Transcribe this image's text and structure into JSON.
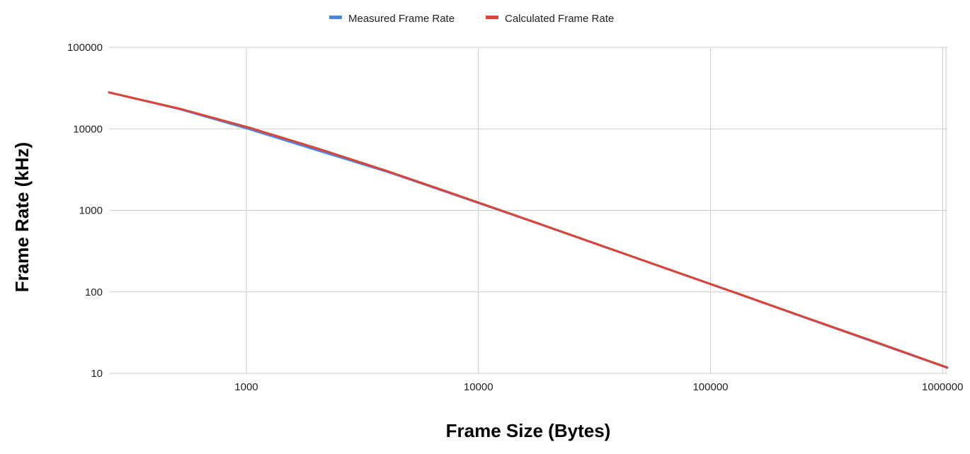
{
  "chart_data": {
    "type": "line",
    "title": "",
    "xlabel": "Frame Size (Bytes)",
    "ylabel": "Frame Rate (kHz)",
    "x_scale": "log",
    "y_scale": "log",
    "xlim": [
      256,
      1048576
    ],
    "ylim": [
      10,
      100000
    ],
    "x_ticks": [
      1000,
      10000,
      100000,
      1000000
    ],
    "x_tick_labels": [
      "1000",
      "10000",
      "100000",
      "1000000"
    ],
    "y_ticks": [
      10,
      100,
      1000,
      10000,
      100000
    ],
    "y_tick_labels": [
      "10",
      "100",
      "1000",
      "10000",
      "100000"
    ],
    "grid": true,
    "legend_position": "top",
    "series": [
      {
        "name": "Measured Frame Rate",
        "color": "#4a86e8",
        "x": [
          256,
          512,
          1024,
          2048,
          4096,
          8192,
          16384,
          32768,
          65536,
          131072,
          262144,
          524288,
          1048576
        ],
        "y": [
          28000,
          17600,
          10000,
          5400,
          2950,
          1500,
          760,
          380,
          190,
          95,
          47,
          23.5,
          11.7
        ]
      },
      {
        "name": "Calculated Frame Rate",
        "color": "#db4437",
        "x": [
          256,
          512,
          1024,
          2048,
          4096,
          8192,
          16384,
          32768,
          65536,
          131072,
          262144,
          524288,
          1048576
        ],
        "y": [
          28000,
          17800,
          10400,
          5700,
          3000,
          1520,
          765,
          382,
          191,
          95.5,
          47.5,
          23.8,
          11.8
        ]
      }
    ]
  }
}
